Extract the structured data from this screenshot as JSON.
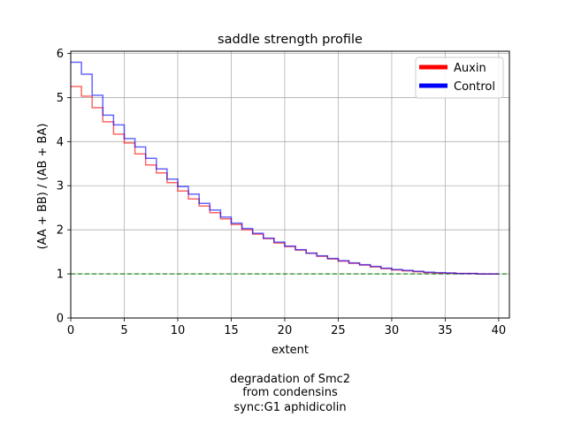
{
  "chart_data": {
    "type": "line",
    "step": true,
    "title": "saddle strength profile",
    "xlabel": "extent",
    "ylabel": "(AA + BB) / (AB + BA)",
    "xlim": [
      0,
      41
    ],
    "ylim": [
      0,
      6.05
    ],
    "xticks": [
      0,
      5,
      10,
      15,
      20,
      25,
      30,
      35,
      40
    ],
    "yticks": [
      0,
      1,
      2,
      3,
      4,
      5,
      6
    ],
    "grid": true,
    "legend_position": "top-right",
    "reference_line": {
      "y": 1,
      "color": "#008000",
      "style": "dashed"
    },
    "caption": [
      "degradation of Smc2",
      "from condensins",
      "sync:G1 aphidicolin"
    ],
    "series": [
      {
        "name": "Auxin",
        "color": "#ff0000",
        "x": [
          0,
          1,
          2,
          3,
          4,
          5,
          6,
          7,
          8,
          9,
          10,
          11,
          12,
          13,
          14,
          15,
          16,
          17,
          18,
          19,
          20,
          21,
          22,
          23,
          24,
          25,
          26,
          27,
          28,
          29,
          30,
          31,
          32,
          33,
          34,
          35,
          36,
          37,
          38,
          39
        ],
        "y": [
          5.25,
          5.03,
          4.77,
          4.45,
          4.17,
          3.97,
          3.72,
          3.47,
          3.29,
          3.07,
          2.88,
          2.7,
          2.54,
          2.39,
          2.25,
          2.12,
          2.0,
          1.9,
          1.8,
          1.7,
          1.62,
          1.54,
          1.47,
          1.4,
          1.34,
          1.29,
          1.24,
          1.2,
          1.16,
          1.12,
          1.09,
          1.07,
          1.05,
          1.03,
          1.02,
          1.02,
          1.01,
          1.01,
          1.0,
          1.0
        ]
      },
      {
        "name": "Control",
        "color": "#0000ff",
        "x": [
          0,
          1,
          2,
          3,
          4,
          5,
          6,
          7,
          8,
          9,
          10,
          11,
          12,
          13,
          14,
          15,
          16,
          17,
          18,
          19,
          20,
          21,
          22,
          23,
          24,
          25,
          26,
          27,
          28,
          29,
          30,
          31,
          32,
          33,
          34,
          35,
          36,
          37,
          38,
          39
        ],
        "y": [
          5.8,
          5.53,
          5.05,
          4.6,
          4.38,
          4.07,
          3.88,
          3.62,
          3.38,
          3.15,
          2.98,
          2.81,
          2.6,
          2.45,
          2.29,
          2.15,
          2.03,
          1.92,
          1.81,
          1.72,
          1.63,
          1.55,
          1.47,
          1.41,
          1.35,
          1.3,
          1.25,
          1.21,
          1.17,
          1.13,
          1.1,
          1.08,
          1.06,
          1.04,
          1.03,
          1.02,
          1.01,
          1.01,
          1.0,
          1.0
        ]
      }
    ]
  }
}
